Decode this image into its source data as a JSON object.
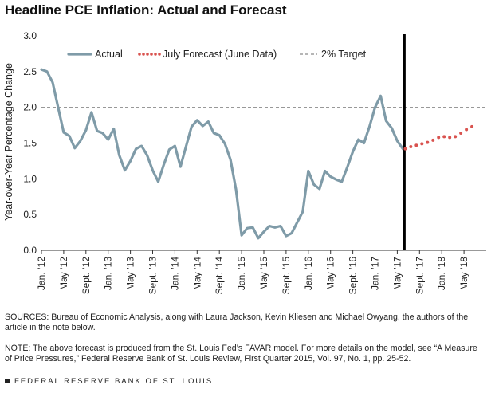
{
  "title": "Headline PCE Inflation: Actual and Forecast",
  "sources": "SOURCES: Bureau of Economic Analysis, along with Laura Jackson, Kevin Kliesen and Michael Owyang, the authors of the article in the note below.",
  "note": "NOTE: The above forecast is produced from the St. Louis Fed’s FAVAR model. For more details on the model, see “A Measure of Price Pressures,” Federal Reserve Bank of St. Louis Review, First Quarter 2015, Vol. 97, No. 1, pp. 25-52.",
  "footer": "FEDERAL RESERVE BANK OF ST. LOUIS",
  "colors": {
    "actual": "#7f9ba8",
    "forecast": "#d9534f",
    "target": "#8a8a8a",
    "divider": "#000000"
  },
  "chart_data": {
    "type": "line",
    "title": "Headline PCE Inflation: Actual and Forecast",
    "ylabel": "Year-over-Year Percentage Change",
    "xlabel": "",
    "ylim": [
      0.0,
      3.0
    ],
    "yticks": [
      "0.0",
      "0.5",
      "1.0",
      "1.5",
      "2.0",
      "2.5",
      "3.0"
    ],
    "xticks": [
      "Jan. ’12",
      "May ’12",
      "Sept. ’12",
      "Jan. ’13",
      "May ’13",
      "Sept. ’13",
      "Jan. ’14",
      "May ’14",
      "Sept. ’14",
      "Jan. ’15",
      "May ’15",
      "Sept. ’15",
      "Jan. ’16",
      "May ’16",
      "Sept. ’16",
      "Jan. ’17",
      "May ’17",
      "Sept. ’17",
      "Jan. ’18",
      "May ’18"
    ],
    "x_start": "Jan. 2012",
    "x_end": "Aug. 2018",
    "frequency": "monthly",
    "grid": false,
    "legend_position": "top",
    "series": [
      {
        "name": "Actual",
        "style": "solid",
        "values": [
          2.53,
          2.5,
          2.35,
          2.0,
          1.65,
          1.6,
          1.43,
          1.53,
          1.68,
          1.93,
          1.67,
          1.64,
          1.55,
          1.7,
          1.33,
          1.12,
          1.25,
          1.42,
          1.46,
          1.33,
          1.12,
          0.96,
          1.2,
          1.41,
          1.46,
          1.17,
          1.45,
          1.73,
          1.82,
          1.74,
          1.8,
          1.64,
          1.61,
          1.49,
          1.27,
          0.85,
          0.21,
          0.31,
          0.32,
          0.17,
          0.26,
          0.34,
          0.32,
          0.34,
          0.2,
          0.24,
          0.39,
          0.54,
          1.11,
          0.92,
          0.86,
          1.11,
          1.03,
          0.99,
          0.96,
          1.16,
          1.38,
          1.55,
          1.5,
          1.73,
          2.0,
          2.16,
          1.81,
          1.71,
          1.53,
          1.42
        ]
      },
      {
        "name": "July Forecast (June Data)",
        "style": "dotted",
        "values": [
          1.42,
          1.45,
          1.47,
          1.49,
          1.51,
          1.54,
          1.58,
          1.59,
          1.58,
          1.59,
          1.64,
          1.69,
          1.73
        ]
      },
      {
        "name": "2% Target",
        "style": "dashed",
        "values": [
          2.0
        ]
      }
    ],
    "forecast_start": "June 2017",
    "divider_at": "June 2017"
  }
}
